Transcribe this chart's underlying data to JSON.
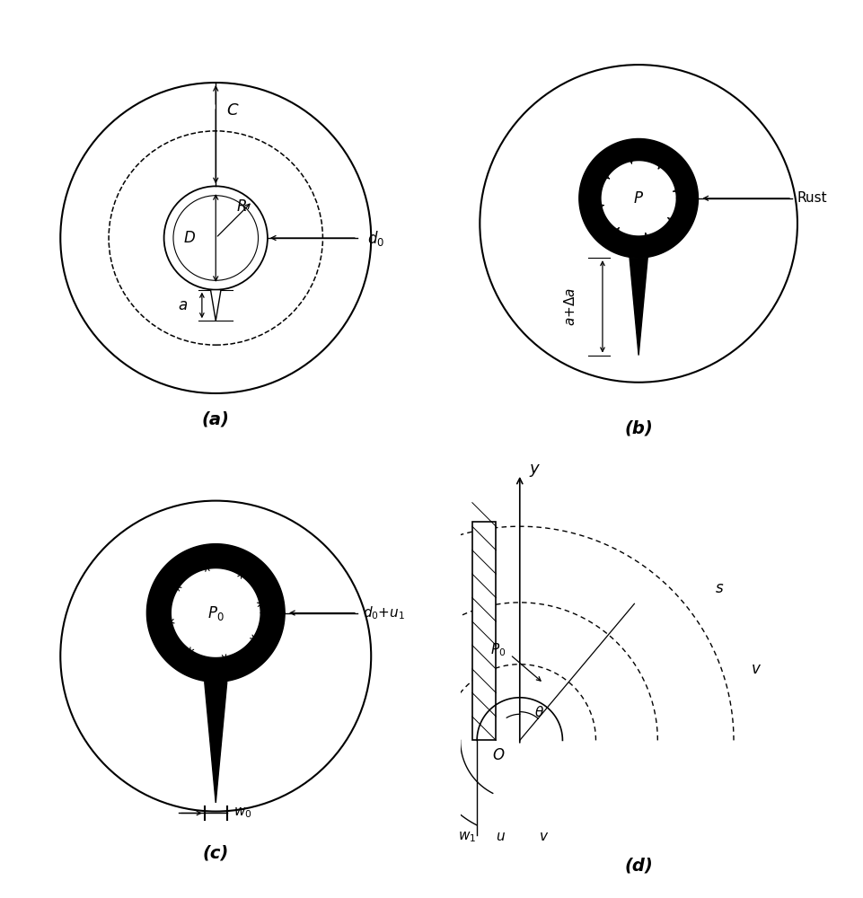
{
  "bg_color": "#ffffff",
  "label_a": "(a)",
  "label_b": "(b)",
  "label_c": "(c)",
  "label_d": "(d)"
}
